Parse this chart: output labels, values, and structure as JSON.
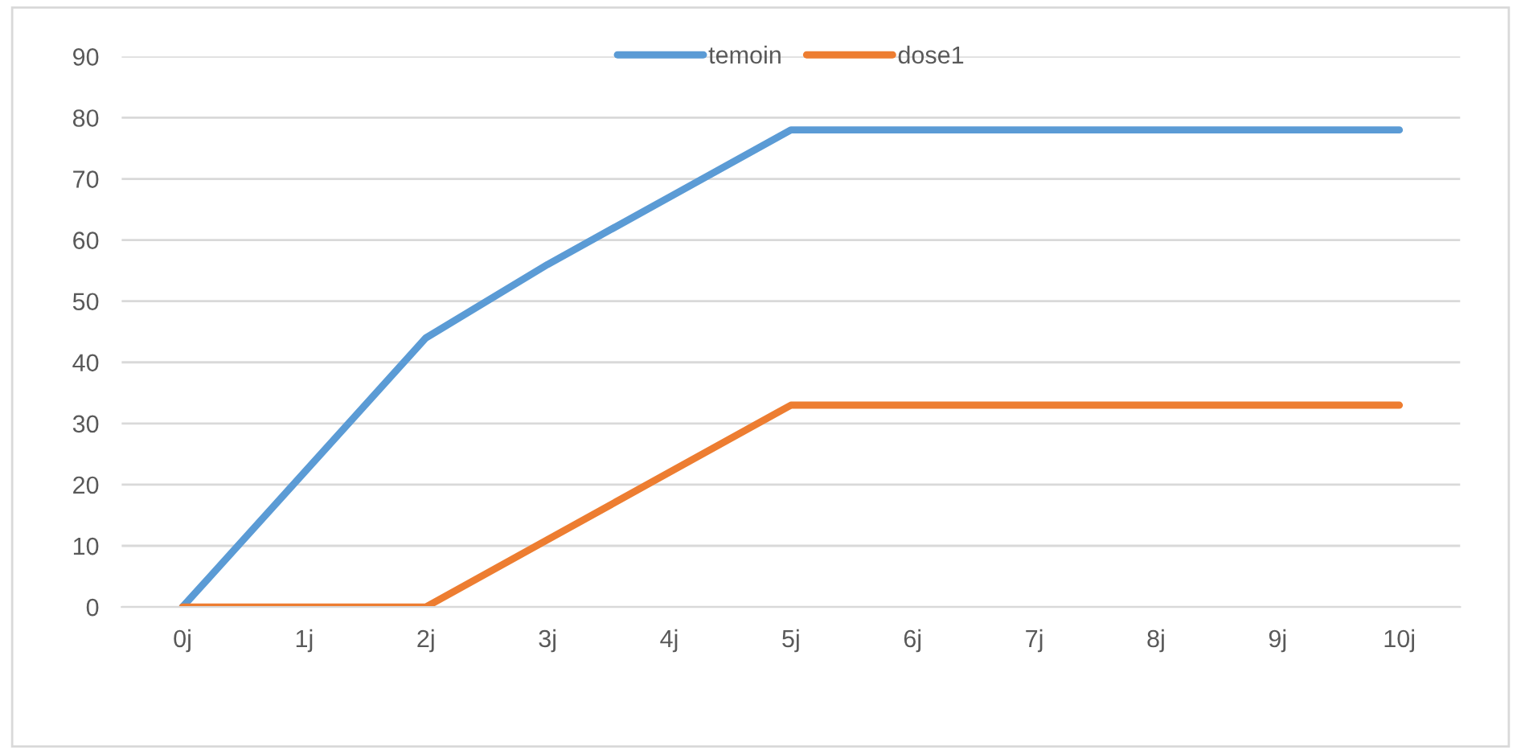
{
  "chart_data": {
    "type": "line",
    "categories": [
      "0j",
      "1j",
      "2j",
      "3j",
      "4j",
      "5j",
      "6j",
      "7j",
      "8j",
      "9j",
      "10j"
    ],
    "series": [
      {
        "name": "temoin",
        "color": "#5b9bd5",
        "values": [
          0,
          22,
          44,
          56,
          67,
          78,
          78,
          78,
          78,
          78,
          78
        ]
      },
      {
        "name": "dose1",
        "color": "#ed7d31",
        "values": [
          0,
          0,
          0,
          11,
          22,
          33,
          33,
          33,
          33,
          33,
          33
        ]
      }
    ],
    "ylim": [
      0,
      90
    ],
    "yticks": [
      0,
      10,
      20,
      30,
      40,
      50,
      60,
      70,
      80,
      90
    ],
    "grid": "y",
    "legend": "top",
    "marker": "none",
    "line_style": "solid"
  }
}
